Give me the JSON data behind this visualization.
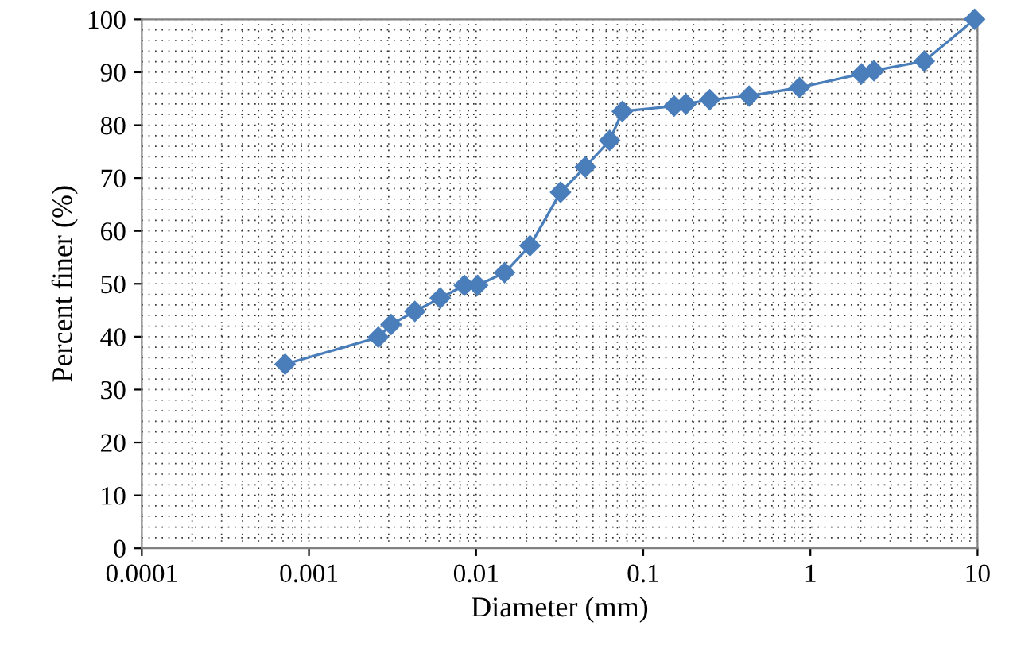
{
  "chart_data": {
    "type": "line",
    "xlabel": "Diameter (mm)",
    "ylabel": "Percent finer (%)",
    "log": "x",
    "xlim": [
      0.0001,
      10
    ],
    "xticks": [
      {
        "value": 0.0001,
        "label": "0.0001"
      },
      {
        "value": 0.001,
        "label": "0.001"
      },
      {
        "value": 0.01,
        "label": "0.01"
      },
      {
        "value": 0.1,
        "label": "0.1"
      },
      {
        "value": 1,
        "label": "1"
      },
      {
        "value": 10,
        "label": "10"
      }
    ],
    "ylim": [
      0,
      100
    ],
    "yticks": [
      0,
      10,
      20,
      30,
      40,
      50,
      60,
      70,
      80,
      90,
      100
    ],
    "grid": true,
    "marker": "diamond",
    "line_style": "solid",
    "series": [
      {
        "color": "#4a7ebb",
        "x": [
          0.00072,
          0.0026,
          0.0031,
          0.0043,
          0.0061,
          0.0085,
          0.0102,
          0.0148,
          0.021,
          0.032,
          0.045,
          0.063,
          0.075,
          0.153,
          0.18,
          0.25,
          0.43,
          0.86,
          2.02,
          2.4,
          4.8,
          9.6
        ],
        "values": [
          34.8,
          39.9,
          42.3,
          44.8,
          47.3,
          49.7,
          49.7,
          52.1,
          57.2,
          67.3,
          72.1,
          77.1,
          82.6,
          83.6,
          84.0,
          84.8,
          85.5,
          87.1,
          89.7,
          90.3,
          92.1,
          100
        ]
      }
    ]
  }
}
